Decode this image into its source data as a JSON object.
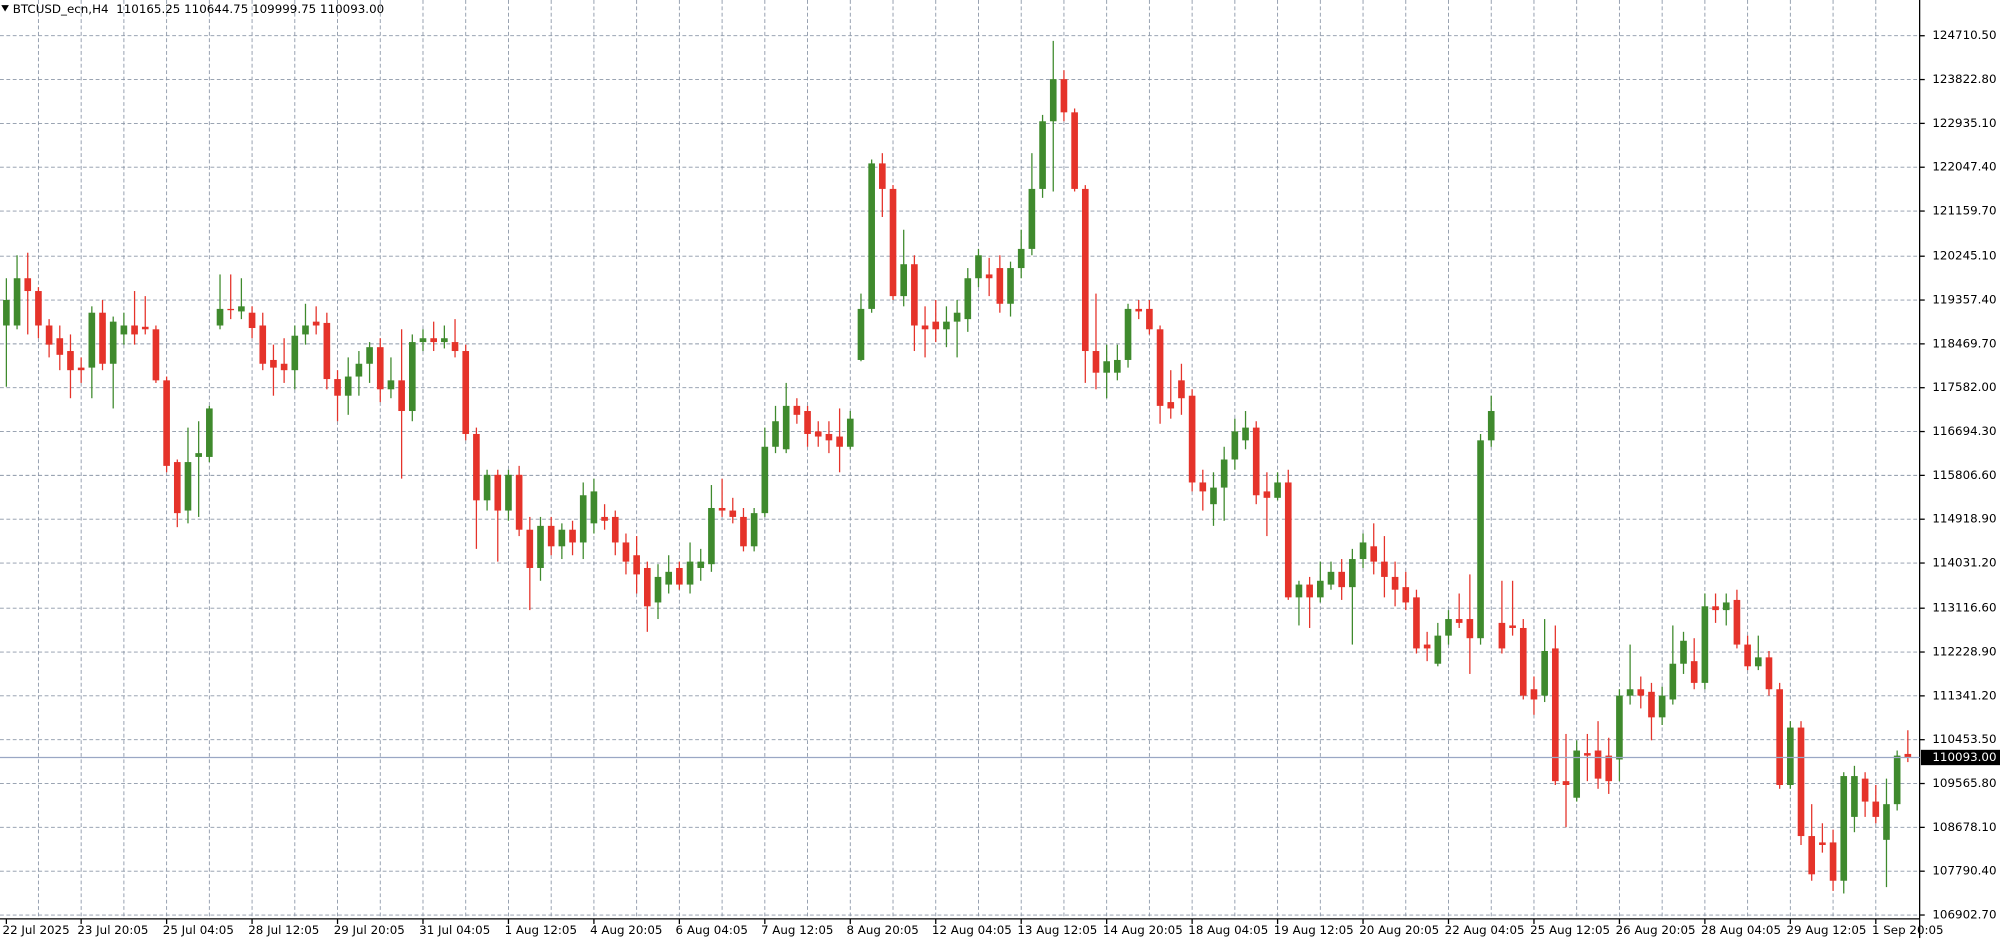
{
  "chart_data": {
    "type": "candlestick",
    "title": "BTCUSD_ecn,H4",
    "header_values": [
      "110165.25",
      "110644.75",
      "109999.75",
      "110093.00"
    ],
    "up_color": "#3f8a2d",
    "down_color": "#e5332a",
    "grid": true,
    "ylim": [
      106825,
      125434
    ],
    "yticks": [
      {
        "value": 106902.7,
        "label": "106902.70"
      },
      {
        "value": 107790.4,
        "label": "107790.40"
      },
      {
        "value": 108678.1,
        "label": "108678.10"
      },
      {
        "value": 109565.8,
        "label": "109565.80"
      },
      {
        "value": 110453.5,
        "label": "110453.50"
      },
      {
        "value": 111341.2,
        "label": "111341.20"
      },
      {
        "value": 112228.9,
        "label": "112228.90"
      },
      {
        "value": 113116.6,
        "label": "113116.60"
      },
      {
        "value": 114031.2,
        "label": "114031.20"
      },
      {
        "value": 114918.9,
        "label": "114918.90"
      },
      {
        "value": 115806.6,
        "label": "115806.60"
      },
      {
        "value": 116694.3,
        "label": "116694.30"
      },
      {
        "value": 117582,
        "label": "117582.00"
      },
      {
        "value": 118469.7,
        "label": "118469.70"
      },
      {
        "value": 119357.4,
        "label": "119357.40"
      },
      {
        "value": 120245.1,
        "label": "120245.10"
      },
      {
        "value": 121159.7,
        "label": "121159.70"
      },
      {
        "value": 122047.4,
        "label": "122047.40"
      },
      {
        "value": 122935.1,
        "label": "122935.10"
      },
      {
        "value": 123822.8,
        "label": "123822.80"
      },
      {
        "value": 124710.5,
        "label": "124710.50"
      }
    ],
    "current_price": {
      "value": 110093,
      "label": "110093.00"
    },
    "categories": [
      "22 Jul 2025",
      null,
      null,
      null,
      null,
      null,
      null,
      "23 Jul 20:05",
      null,
      null,
      null,
      null,
      null,
      null,
      null,
      "25 Jul 04:05",
      null,
      null,
      null,
      null,
      null,
      null,
      null,
      "28 Jul 12:05",
      null,
      null,
      null,
      null,
      null,
      null,
      null,
      "29 Jul 20:05",
      null,
      null,
      null,
      null,
      null,
      null,
      null,
      "31 Jul 04:05",
      null,
      null,
      null,
      null,
      null,
      null,
      null,
      "1 Aug 12:05",
      null,
      null,
      null,
      null,
      null,
      null,
      null,
      "4 Aug 20:05",
      null,
      null,
      null,
      null,
      null,
      null,
      null,
      "6 Aug 04:05",
      null,
      null,
      null,
      null,
      null,
      null,
      null,
      "7 Aug 12:05",
      null,
      null,
      null,
      null,
      null,
      null,
      null,
      "8 Aug 20:05",
      null,
      null,
      null,
      null,
      null,
      null,
      null,
      "12 Aug 04:05",
      null,
      null,
      null,
      null,
      null,
      null,
      null,
      "13 Aug 12:05",
      null,
      null,
      null,
      null,
      null,
      null,
      null,
      "14 Aug 20:05",
      null,
      null,
      null,
      null,
      null,
      null,
      null,
      "18 Aug 04:05",
      null,
      null,
      null,
      null,
      null,
      null,
      null,
      "19 Aug 12:05",
      null,
      null,
      null,
      null,
      null,
      null,
      null,
      "20 Aug 20:05",
      null,
      null,
      null,
      null,
      null,
      null,
      null,
      "22 Aug 04:05",
      null,
      null,
      null,
      null,
      null,
      null,
      null,
      "25 Aug 12:05",
      null,
      null,
      null,
      null,
      null,
      null,
      null,
      "26 Aug 20:05",
      null,
      null,
      null,
      null,
      null,
      null,
      null,
      "28 Aug 04:05",
      null,
      null,
      null,
      null,
      null,
      null,
      null,
      "29 Aug 12:05",
      null,
      null,
      null,
      null,
      null,
      null,
      null,
      "1 Sep 20:05",
      null,
      null,
      null
    ],
    "open": [
      118842,
      118842,
      119799,
      119540,
      118842,
      118584,
      118325,
      117989,
      117989,
      119101,
      118067,
      118661,
      118842,
      118816,
      118765,
      117731,
      116076,
      115094,
      116180,
      116180,
      118842,
      119178,
      119127,
      119101,
      118842,
      118144,
      118067,
      117937,
      118661,
      118920,
      118894,
      117757,
      117420,
      117808,
      118067,
      118403,
      117550,
      117731,
      117110,
      118506,
      118584,
      118506,
      118506,
      118325,
      116645,
      115301,
      115818,
      115094,
      115818,
      114706,
      113931,
      114784,
      114370,
      114706,
      114448,
      114835,
      114965,
      114965,
      114448,
      114189,
      113931,
      113233,
      113595,
      113931,
      113595,
      113931,
      114008,
      115146,
      115094,
      114965,
      114370,
      115042,
      116386,
      116335,
      117214,
      117110,
      116697,
      116645,
      116593,
      116386,
      118144,
      119178,
      122125,
      121608,
      119437,
      120083,
      118842,
      118920,
      118765,
      118920,
      118971,
      119799,
      119876,
      120005,
      119282,
      120005,
      120393,
      121608,
      122978,
      123831,
      123159,
      121608,
      118325,
      117886,
      117886,
      118144,
      119178,
      119178,
      118765,
      117291,
      117731,
      117420,
      115663,
      115223,
      115559,
      116128,
      116516,
      116774,
      115482,
      115352,
      115663,
      113336,
      113595,
      113336,
      113595,
      113853,
      113543,
      114112,
      114370,
      114060,
      113750,
      113543,
      113336,
      112380,
      111992,
      112561,
      112897,
      112897,
      112509,
      116516,
      112819,
      112767,
      112716,
      111475,
      111346,
      112302,
      109614,
      109278,
      110182,
      110234,
      110131,
      110053,
      111346,
      111475,
      111423,
      110906,
      111268,
      111992,
      112044,
      111604,
      113155,
      113078,
      113284,
      112380,
      111940,
      112121,
      111475,
      109536,
      110699,
      108502,
      108373,
      108373,
      107597,
      108890,
      109665,
      109200,
      108425,
      109148,
      110165.25
    ],
    "high": [
      119799,
      120264,
      120316,
      119618,
      118971,
      118842,
      118661,
      118196,
      119230,
      119359,
      119023,
      119101,
      119540,
      119437,
      118842,
      117808,
      116128,
      116774,
      116903,
      117214,
      119876,
      119876,
      119799,
      119230,
      119101,
      118454,
      118584,
      118842,
      119282,
      119230,
      119101,
      117937,
      118196,
      118325,
      118506,
      118584,
      118196,
      118765,
      118661,
      118765,
      118920,
      118842,
      118971,
      118454,
      116774,
      115921,
      115921,
      115921,
      115999,
      114965,
      114965,
      114965,
      114835,
      114887,
      115663,
      115740,
      115223,
      115094,
      114629,
      114577,
      114060,
      114008,
      114189,
      114060,
      114448,
      114318,
      115611,
      115740,
      115352,
      115146,
      115146,
      116774,
      117214,
      117679,
      117369,
      117214,
      116903,
      116903,
      117162,
      117110,
      119488,
      122203,
      122332,
      121686,
      120781,
      120264,
      119230,
      119359,
      119230,
      119359,
      120005,
      120393,
      120212,
      120264,
      120135,
      120781,
      122332,
      123107,
      124607,
      124012,
      123237,
      121686,
      119488,
      118454,
      118454,
      119282,
      119359,
      119359,
      118842,
      117937,
      118067,
      117550,
      115921,
      115869,
      116386,
      116955,
      117110,
      116903,
      115869,
      115869,
      115921,
      113672,
      113750,
      114060,
      114060,
      114112,
      114318,
      114629,
      114835,
      114577,
      114060,
      113853,
      113491,
      112638,
      112819,
      113078,
      113414,
      113801,
      116645,
      117420,
      113672,
      113672,
      112897,
      111733,
      112897,
      112767,
      110570,
      110441,
      110570,
      110829,
      110493,
      111475,
      112380,
      111733,
      111604,
      111527,
      112767,
      112638,
      112509,
      113414,
      113414,
      113414,
      113491,
      112561,
      112561,
      112250,
      111604,
      110829,
      110829,
      109148,
      108761,
      108631,
      109795,
      109924,
      109795,
      109536,
      109665,
      110234,
      110644.75
    ],
    "low": [
      117601,
      118765,
      118661,
      118584,
      118196,
      117937,
      117369,
      117679,
      117369,
      117937,
      117162,
      118454,
      118454,
      118661,
      117679,
      115869,
      114758,
      114835,
      114965,
      116076,
      118765,
      118971,
      118971,
      118584,
      117937,
      117420,
      117679,
      117550,
      118454,
      118661,
      117550,
      116903,
      117033,
      117420,
      117679,
      117291,
      117369,
      115740,
      116903,
      118325,
      118325,
      118377,
      118196,
      116516,
      114318,
      115094,
      114060,
      114887,
      114577,
      113078,
      113672,
      114189,
      114112,
      114189,
      114112,
      114629,
      114706,
      114189,
      113801,
      113414,
      112638,
      112897,
      113414,
      113491,
      113414,
      113672,
      113853,
      114965,
      114835,
      114267,
      114267,
      114965,
      116257,
      116257,
      116852,
      116386,
      116386,
      116257,
      115869,
      116335,
      118118,
      119101,
      121039,
      119359,
      119230,
      118325,
      118196,
      118506,
      118403,
      118196,
      118713,
      119618,
      119437,
      119101,
      119023,
      119799,
      120264,
      121427,
      121556,
      122978,
      121556,
      117679,
      117550,
      117369,
      117731,
      117989,
      118971,
      118661,
      116852,
      116955,
      117033,
      115482,
      115094,
      114784,
      114887,
      115921,
      116335,
      115223,
      114577,
      115301,
      113284,
      112767,
      112716,
      113233,
      113491,
      113284,
      112380,
      113931,
      113801,
      113336,
      113155,
      113078,
      112199,
      112044,
      111940,
      112380,
      112716,
      111785,
      112380,
      116386,
      112199,
      112561,
      111268,
      110958,
      111216,
      109536,
      108683,
      109200,
      109614,
      109459,
      109355,
      109614,
      111165,
      111087,
      110441,
      110751,
      111165,
      111785,
      111475,
      111475,
      112819,
      112767,
      112302,
      111863,
      111863,
      111346,
      109459,
      109459,
      108321,
      107597,
      108166,
      107391,
      107339,
      108580,
      108890,
      108761,
      107468,
      109019,
      109999.75
    ],
    "close": [
      119359,
      119799,
      119540,
      118842,
      118454,
      118248,
      117937,
      117937,
      119101,
      118067,
      118920,
      118842,
      118661,
      118765,
      117731,
      115999,
      115042,
      116076,
      116257,
      117162,
      119178,
      119152,
      119230,
      118791,
      118067,
      117989,
      117937,
      118635,
      118842,
      118842,
      117757,
      117420,
      117808,
      118067,
      118403,
      117550,
      117731,
      117110,
      118506,
      118584,
      118506,
      118584,
      118325,
      116645,
      115301,
      115818,
      115094,
      115818,
      114706,
      113931,
      114784,
      114370,
      114706,
      114448,
      115404,
      115482,
      114887,
      114448,
      114060,
      113801,
      113155,
      113750,
      113853,
      113595,
      114060,
      114060,
      115146,
      115094,
      114965,
      114370,
      115042,
      116386,
      116903,
      117214,
      117033,
      116645,
      116593,
      116516,
      116386,
      116955,
      119178,
      122125,
      121608,
      119437,
      120083,
      118842,
      118765,
      118765,
      118920,
      119101,
      119799,
      120264,
      119799,
      119282,
      120005,
      120393,
      121608,
      122978,
      123831,
      123159,
      121608,
      118325,
      117886,
      118118,
      118144,
      119178,
      119127,
      118765,
      117214,
      117162,
      117369,
      115663,
      115482,
      115559,
      116128,
      116697,
      116774,
      115404,
      115352,
      115663,
      113336,
      113595,
      113336,
      113672,
      113853,
      113543,
      114112,
      114448,
      114060,
      113750,
      113491,
      113233,
      112302,
      112302,
      112561,
      112897,
      112819,
      112509,
      116516,
      117110,
      112302,
      112716,
      111346,
      111268,
      112250,
      109614,
      109536,
      110234,
      110131,
      109665,
      109614,
      111346,
      111475,
      111346,
      110906,
      111346,
      111992,
      112457,
      111604,
      113155,
      113078,
      113233,
      112380,
      111940,
      112121,
      111475,
      109536,
      110699,
      108502,
      107727,
      108321,
      107597,
      109717,
      109717,
      109200,
      108890,
      109148,
      110131,
      110093
    ]
  }
}
